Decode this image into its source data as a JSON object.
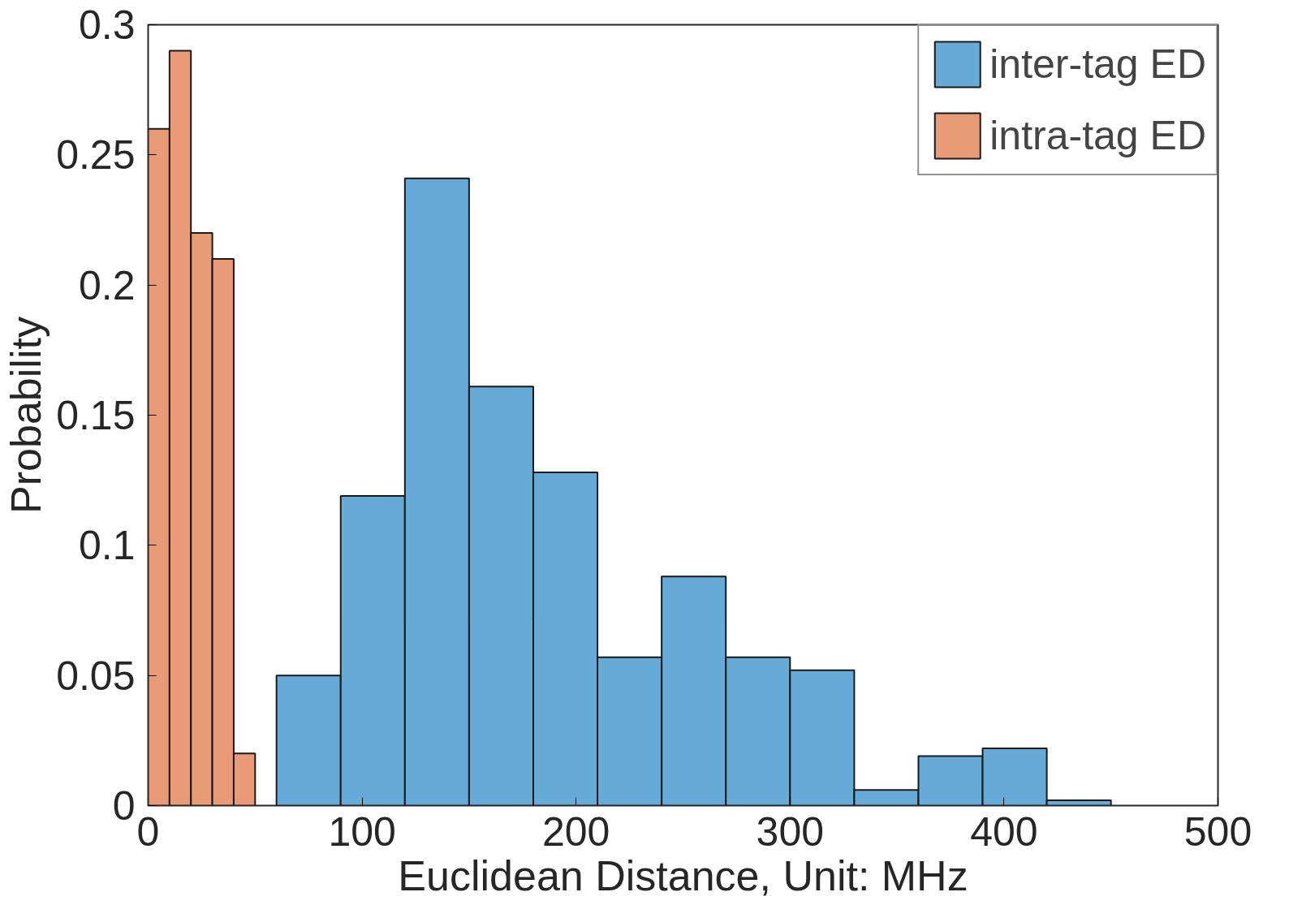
{
  "chart_data": {
    "type": "histogram",
    "xlabel": "Euclidean Distance, Unit: MHz",
    "ylabel": "Probability",
    "xlim": [
      0,
      500
    ],
    "xticks": [
      0,
      100,
      200,
      300,
      400,
      500
    ],
    "ylim": [
      0,
      0.3
    ],
    "yticks": [
      0,
      0.05,
      0.1,
      0.15,
      0.2,
      0.25,
      0.3
    ],
    "grid": false,
    "legend": "top right",
    "bins": [
      0,
      10,
      20,
      30,
      40,
      50,
      60,
      90,
      120,
      150,
      180,
      210,
      240,
      270,
      300,
      330,
      360,
      390,
      420,
      450
    ],
    "series": [
      {
        "name": "inter-tag ED",
        "color": "#66aad7",
        "values": [
          null,
          null,
          null,
          null,
          null,
          null,
          0.05,
          0.119,
          0.241,
          0.161,
          0.128,
          0.057,
          0.088,
          0.057,
          0.052,
          0.006,
          0.019,
          0.022,
          0.002
        ]
      },
      {
        "name": "intra-tag ED",
        "color": "#e99a77",
        "values": [
          0.26,
          0.29,
          0.22,
          0.21,
          0.02,
          null,
          null,
          null,
          null,
          null,
          null,
          null,
          null,
          null,
          null,
          null,
          null,
          null,
          null
        ]
      }
    ]
  }
}
